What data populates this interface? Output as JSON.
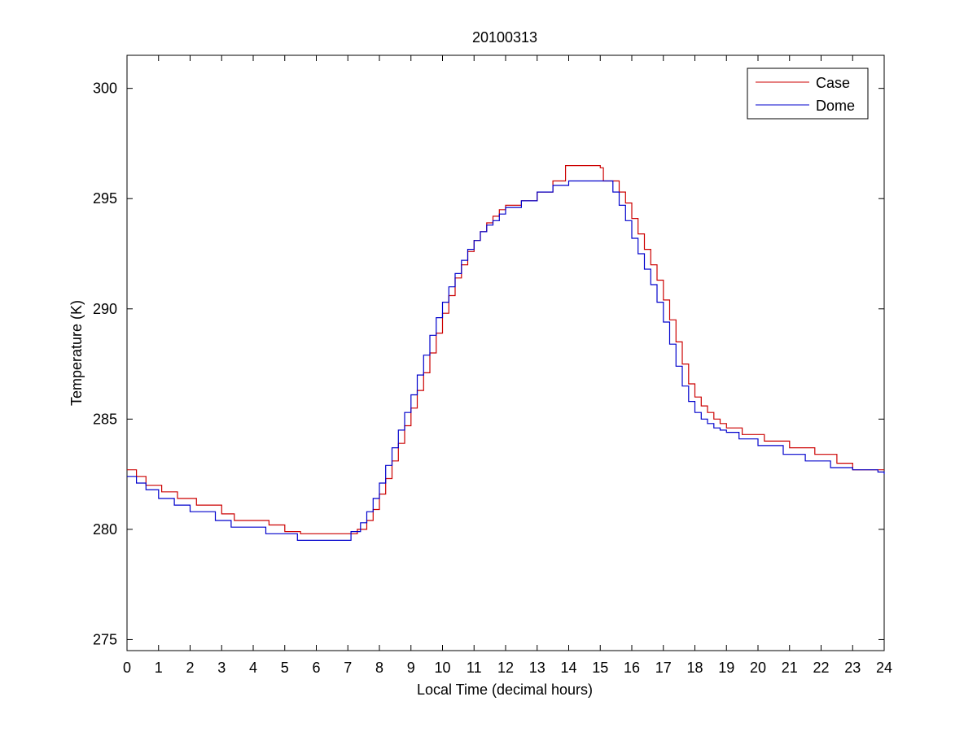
{
  "chart_data": {
    "type": "line",
    "title": "20100313",
    "xlabel": "Local Time (decimal hours)",
    "ylabel": "Temperature (K)",
    "xlim": [
      0,
      24
    ],
    "ylim": [
      274.5,
      301.5
    ],
    "xticks": [
      0,
      1,
      2,
      3,
      4,
      5,
      6,
      7,
      8,
      9,
      10,
      11,
      12,
      13,
      14,
      15,
      16,
      17,
      18,
      19,
      20,
      21,
      22,
      23,
      24
    ],
    "yticks": [
      275,
      280,
      285,
      290,
      295,
      300
    ],
    "grid": false,
    "legend_position": "top-right",
    "series": [
      {
        "name": "Case",
        "color": "#cc0000",
        "x": [
          0.0,
          0.3,
          0.6,
          1.1,
          1.6,
          2.2,
          3.0,
          3.4,
          4.5,
          5.0,
          5.5,
          7.0,
          7.3,
          7.6,
          7.8,
          8.0,
          8.2,
          8.4,
          8.6,
          8.8,
          9.0,
          9.2,
          9.4,
          9.6,
          9.8,
          10.0,
          10.2,
          10.4,
          10.6,
          10.8,
          11.0,
          11.2,
          11.4,
          11.6,
          11.8,
          12.0,
          12.5,
          13.0,
          13.5,
          13.9,
          14.3,
          14.7,
          15.0,
          15.1,
          15.6,
          15.8,
          16.0,
          16.2,
          16.4,
          16.6,
          16.8,
          17.0,
          17.2,
          17.4,
          17.6,
          17.8,
          18.0,
          18.2,
          18.4,
          18.6,
          18.8,
          19.0,
          19.5,
          20.2,
          21.0,
          21.8,
          22.5,
          23.0,
          24.0
        ],
        "y": [
          282.7,
          282.4,
          282.0,
          281.7,
          281.4,
          281.1,
          280.7,
          280.4,
          280.2,
          279.9,
          279.8,
          279.8,
          280.0,
          280.4,
          280.9,
          281.6,
          282.3,
          283.1,
          283.9,
          284.7,
          285.5,
          286.3,
          287.1,
          288.0,
          288.9,
          289.8,
          290.6,
          291.4,
          292.0,
          292.6,
          293.1,
          293.5,
          293.9,
          294.2,
          294.5,
          294.7,
          294.9,
          295.3,
          295.8,
          296.5,
          296.5,
          296.5,
          296.4,
          295.8,
          295.3,
          294.8,
          294.1,
          293.4,
          292.7,
          292.0,
          291.3,
          290.4,
          289.5,
          288.5,
          287.5,
          286.6,
          286.0,
          285.6,
          285.3,
          285.0,
          284.8,
          284.6,
          284.3,
          284.0,
          283.7,
          283.4,
          283.0,
          282.7,
          282.7
        ]
      },
      {
        "name": "Dome",
        "color": "#0000cc",
        "x": [
          0.0,
          0.3,
          0.6,
          1.0,
          1.5,
          2.0,
          2.8,
          3.3,
          4.4,
          4.9,
          5.4,
          6.8,
          7.1,
          7.4,
          7.6,
          7.8,
          8.0,
          8.2,
          8.4,
          8.6,
          8.8,
          9.0,
          9.2,
          9.4,
          9.6,
          9.8,
          10.0,
          10.2,
          10.4,
          10.6,
          10.8,
          11.0,
          11.2,
          11.4,
          11.6,
          11.8,
          12.0,
          12.5,
          13.0,
          13.5,
          14.0,
          14.5,
          15.0,
          15.4,
          15.6,
          15.8,
          16.0,
          16.2,
          16.4,
          16.6,
          16.8,
          17.0,
          17.2,
          17.4,
          17.6,
          17.8,
          18.0,
          18.2,
          18.4,
          18.6,
          18.8,
          19.0,
          19.4,
          20.0,
          20.8,
          21.5,
          22.3,
          23.0,
          23.8,
          24.0
        ],
        "y": [
          282.4,
          282.1,
          281.8,
          281.4,
          281.1,
          280.8,
          280.4,
          280.1,
          279.8,
          279.8,
          279.5,
          279.5,
          279.9,
          280.3,
          280.8,
          281.4,
          282.1,
          282.9,
          283.7,
          284.5,
          285.3,
          286.1,
          287.0,
          287.9,
          288.8,
          289.6,
          290.3,
          291.0,
          291.6,
          292.2,
          292.7,
          293.1,
          293.5,
          293.8,
          294.0,
          294.3,
          294.6,
          294.9,
          295.3,
          295.6,
          295.8,
          295.8,
          295.8,
          295.3,
          294.7,
          294.0,
          293.2,
          292.5,
          291.8,
          291.1,
          290.3,
          289.4,
          288.4,
          287.4,
          286.5,
          285.8,
          285.3,
          285.0,
          284.8,
          284.6,
          284.5,
          284.4,
          284.1,
          283.8,
          283.4,
          283.1,
          282.8,
          282.7,
          282.6,
          282.5
        ]
      }
    ]
  }
}
